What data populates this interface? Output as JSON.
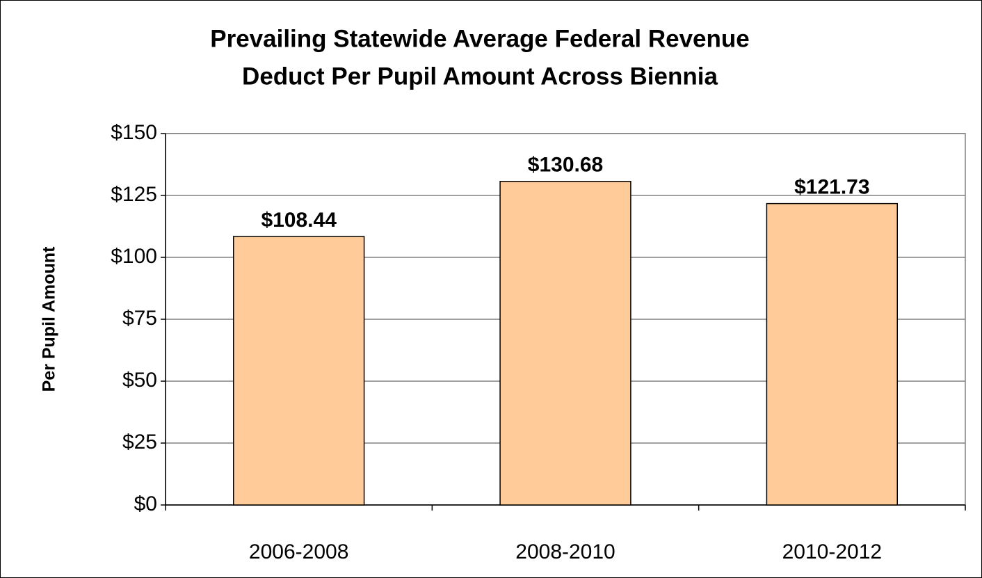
{
  "chart_data": {
    "type": "bar",
    "title": [
      "Prevailing Statewide Average Federal Revenue",
      "Deduct Per Pupil Amount Across Biennia"
    ],
    "y_label": "Per Pupil Amount",
    "categories": [
      "2006-2008",
      "2008-2010",
      "2010-2012"
    ],
    "values": [
      108.44,
      130.68,
      121.73
    ],
    "value_labels": [
      "$108.44",
      "$130.68",
      "$121.73"
    ],
    "color": "#FFCC99",
    "ylim": [
      0,
      150
    ],
    "yticks": [
      {
        "value": 0,
        "label": "$0"
      },
      {
        "value": 25,
        "label": "$25"
      },
      {
        "value": 50,
        "label": "$50"
      },
      {
        "value": 75,
        "label": "$75"
      },
      {
        "value": 100,
        "label": "$100"
      },
      {
        "value": 125,
        "label": "$125"
      },
      {
        "value": 150,
        "label": "$150"
      }
    ],
    "grid": true
  }
}
